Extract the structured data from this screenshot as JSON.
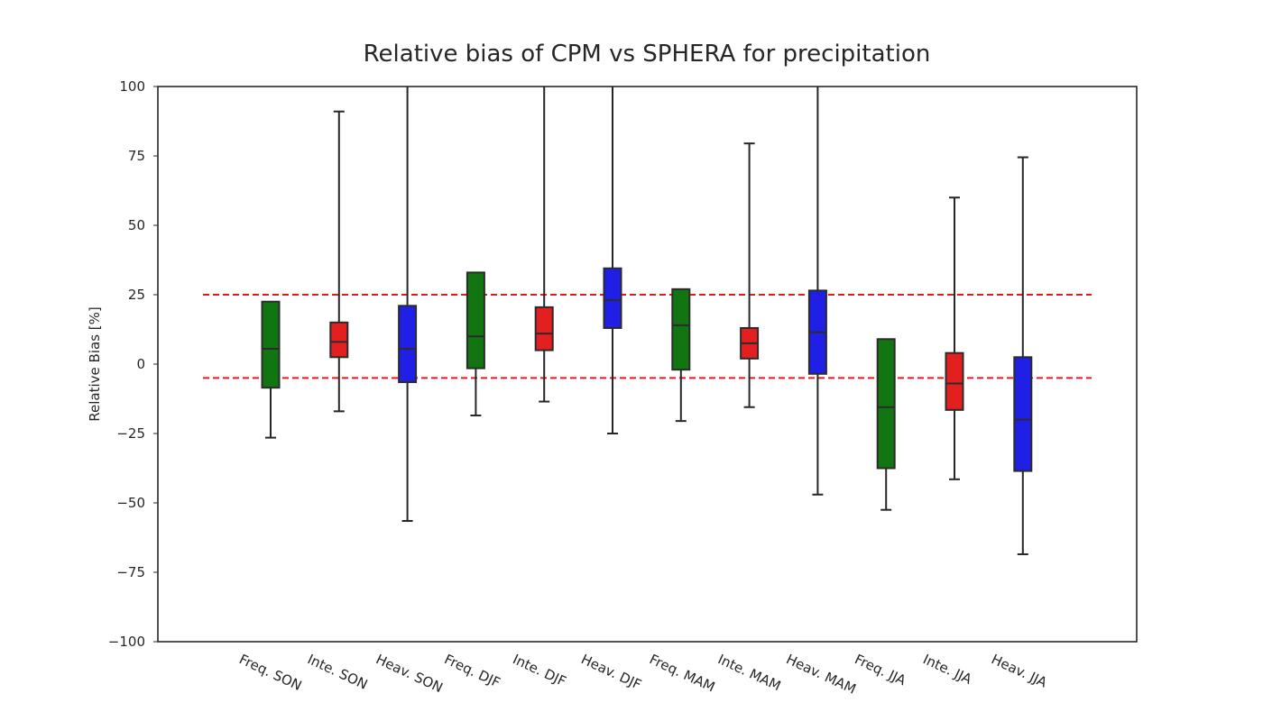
{
  "chart_data": {
    "type": "box",
    "title": "Relative bias of CPM vs SPHERA for precipitation",
    "xlabel": "",
    "ylabel": "Relative Bias [%]",
    "ylim": [
      -100,
      100
    ],
    "yticks": [
      -100,
      -75,
      -50,
      -25,
      0,
      25,
      50,
      75,
      100
    ],
    "ytick_labels": [
      "−100",
      "−75",
      "−50",
      "−25",
      "0",
      "25",
      "50",
      "75",
      "100"
    ],
    "grid": false,
    "reference_lines": [
      25,
      -5
    ],
    "reference_line_color": "#e41a1c",
    "categories": [
      "Freq. SON",
      "Inte. SON",
      "Heav. SON",
      "Freq. DJF",
      "Inte. DJF",
      "Heav. DJF",
      "Freq. MAM",
      "Inte. MAM",
      "Heav. MAM",
      "Freq. JJA",
      "Inte. JJA",
      "Heav. JJA"
    ],
    "boxes": [
      {
        "whisker_low": -26.5,
        "q1": -8.5,
        "median": 5.5,
        "q3": 22.5,
        "whisker_high": null,
        "color": "#117611"
      },
      {
        "whisker_low": -17.0,
        "q1": 2.5,
        "median": 8.0,
        "q3": 15.0,
        "whisker_high": 91.0,
        "color": "#e41f1f"
      },
      {
        "whisker_low": -56.5,
        "q1": -6.5,
        "median": 5.5,
        "q3": 21.0,
        "whisker_high": 100,
        "color": "#1f1fe5"
      },
      {
        "whisker_low": -18.5,
        "q1": -1.5,
        "median": 10.0,
        "q3": 33.0,
        "whisker_high": null,
        "color": "#117611"
      },
      {
        "whisker_low": -13.5,
        "q1": 5.0,
        "median": 11.0,
        "q3": 20.5,
        "whisker_high": 100,
        "color": "#e41f1f"
      },
      {
        "whisker_low": -25.0,
        "q1": 13.0,
        "median": 23.0,
        "q3": 34.5,
        "whisker_high": 100,
        "color": "#1f1fe5"
      },
      {
        "whisker_low": -20.5,
        "q1": -2.0,
        "median": 14.0,
        "q3": 27.0,
        "whisker_high": null,
        "color": "#117611"
      },
      {
        "whisker_low": -15.5,
        "q1": 2.0,
        "median": 7.5,
        "q3": 13.0,
        "whisker_high": 79.5,
        "color": "#e41f1f"
      },
      {
        "whisker_low": -47.0,
        "q1": -3.5,
        "median": 11.5,
        "q3": 26.5,
        "whisker_high": 100,
        "color": "#1f1fe5"
      },
      {
        "whisker_low": -52.5,
        "q1": -37.5,
        "median": -15.5,
        "q3": 9.0,
        "whisker_high": null,
        "color": "#117611"
      },
      {
        "whisker_low": -41.5,
        "q1": -16.5,
        "median": -7.0,
        "q3": 4.0,
        "whisker_high": 60.0,
        "color": "#e41f1f"
      },
      {
        "whisker_low": -68.5,
        "q1": -38.5,
        "median": -20.0,
        "q3": 2.5,
        "whisker_high": 74.5,
        "color": "#1f1fe5"
      }
    ]
  }
}
